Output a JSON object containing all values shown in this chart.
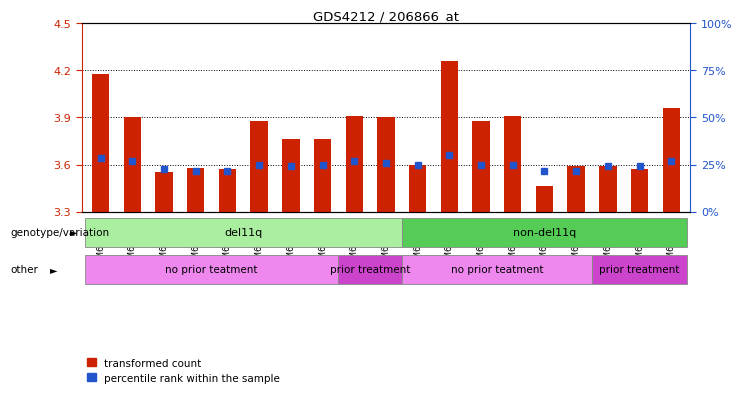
{
  "title": "GDS4212 / 206866_at",
  "samples": [
    "GSM652229",
    "GSM652230",
    "GSM652232",
    "GSM652233",
    "GSM652234",
    "GSM652235",
    "GSM652236",
    "GSM652231",
    "GSM652237",
    "GSM652238",
    "GSM652241",
    "GSM652242",
    "GSM652243",
    "GSM652244",
    "GSM652245",
    "GSM652247",
    "GSM652239",
    "GSM652240",
    "GSM652246"
  ],
  "red_values": [
    4.18,
    3.9,
    3.55,
    3.58,
    3.57,
    3.88,
    3.76,
    3.76,
    3.91,
    3.9,
    3.6,
    4.26,
    3.88,
    3.91,
    3.46,
    3.59,
    3.59,
    3.57,
    3.96
  ],
  "blue_values": [
    3.64,
    3.62,
    3.57,
    3.56,
    3.56,
    3.6,
    3.59,
    3.6,
    3.62,
    3.61,
    3.6,
    3.66,
    3.6,
    3.6,
    3.56,
    3.56,
    3.59,
    3.59,
    3.62
  ],
  "ymin": 3.3,
  "ymax": 4.5,
  "yticks": [
    3.3,
    3.6,
    3.9,
    4.2,
    4.5
  ],
  "y2ticks": [
    0,
    25,
    50,
    75,
    100
  ],
  "y2ticklabels": [
    "0%",
    "25%",
    "50%",
    "75%",
    "100%"
  ],
  "dotted_lines": [
    3.6,
    3.9,
    4.2
  ],
  "red_color": "#cc2200",
  "blue_color": "#2255cc",
  "bar_width": 0.55,
  "genotype_groups": [
    {
      "label": "del11q",
      "start": 0,
      "end": 9,
      "color": "#aaeea0"
    },
    {
      "label": "non-del11q",
      "start": 10,
      "end": 18,
      "color": "#55cc55"
    }
  ],
  "other_groups": [
    {
      "label": "no prior teatment",
      "start": 0,
      "end": 7,
      "color": "#ee88ee"
    },
    {
      "label": "prior treatment",
      "start": 8,
      "end": 9,
      "color": "#cc44cc"
    },
    {
      "label": "no prior teatment",
      "start": 10,
      "end": 15,
      "color": "#ee88ee"
    },
    {
      "label": "prior treatment",
      "start": 16,
      "end": 18,
      "color": "#cc44cc"
    }
  ],
  "red_color_legend": "#cc2200",
  "blue_color_legend": "#2255cc",
  "legend_labels": [
    "transformed count",
    "percentile rank within the sample"
  ],
  "bgcolor": "#ffffff",
  "tick_label_color_left": "#cc2200",
  "tick_label_color_right": "#2255cc"
}
